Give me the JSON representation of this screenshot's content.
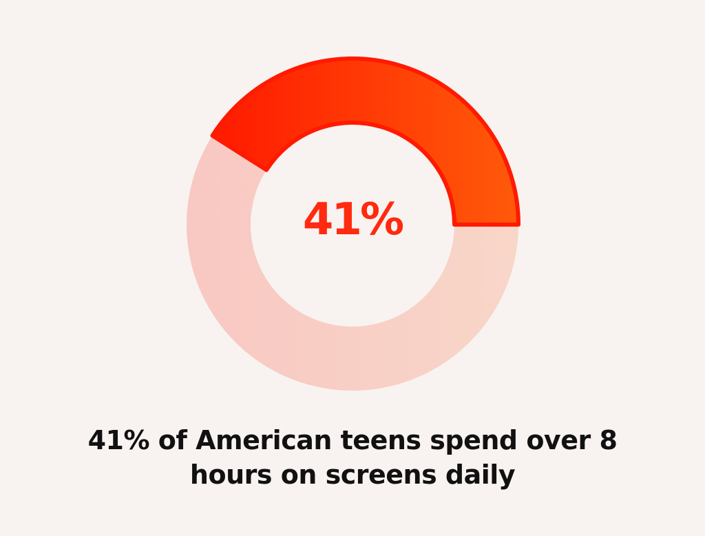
{
  "chart_data": {
    "type": "pie",
    "style": "donut",
    "center_label": "41%",
    "slices": [
      {
        "value": 41,
        "color": "#ff3a0a"
      },
      {
        "value": 59,
        "color": "#f9cfc6"
      }
    ]
  },
  "caption": "41% of American teens spend over 8 hours on screens daily",
  "colors": {
    "background": "#f8f3f0",
    "highlight_start": "#ff1a00",
    "highlight_end": "#ff5a0a",
    "remainder_start": "#f8c8c2",
    "remainder_end": "#f8d6c8",
    "center_text": "#ff2a0f",
    "caption_text": "#111111"
  }
}
